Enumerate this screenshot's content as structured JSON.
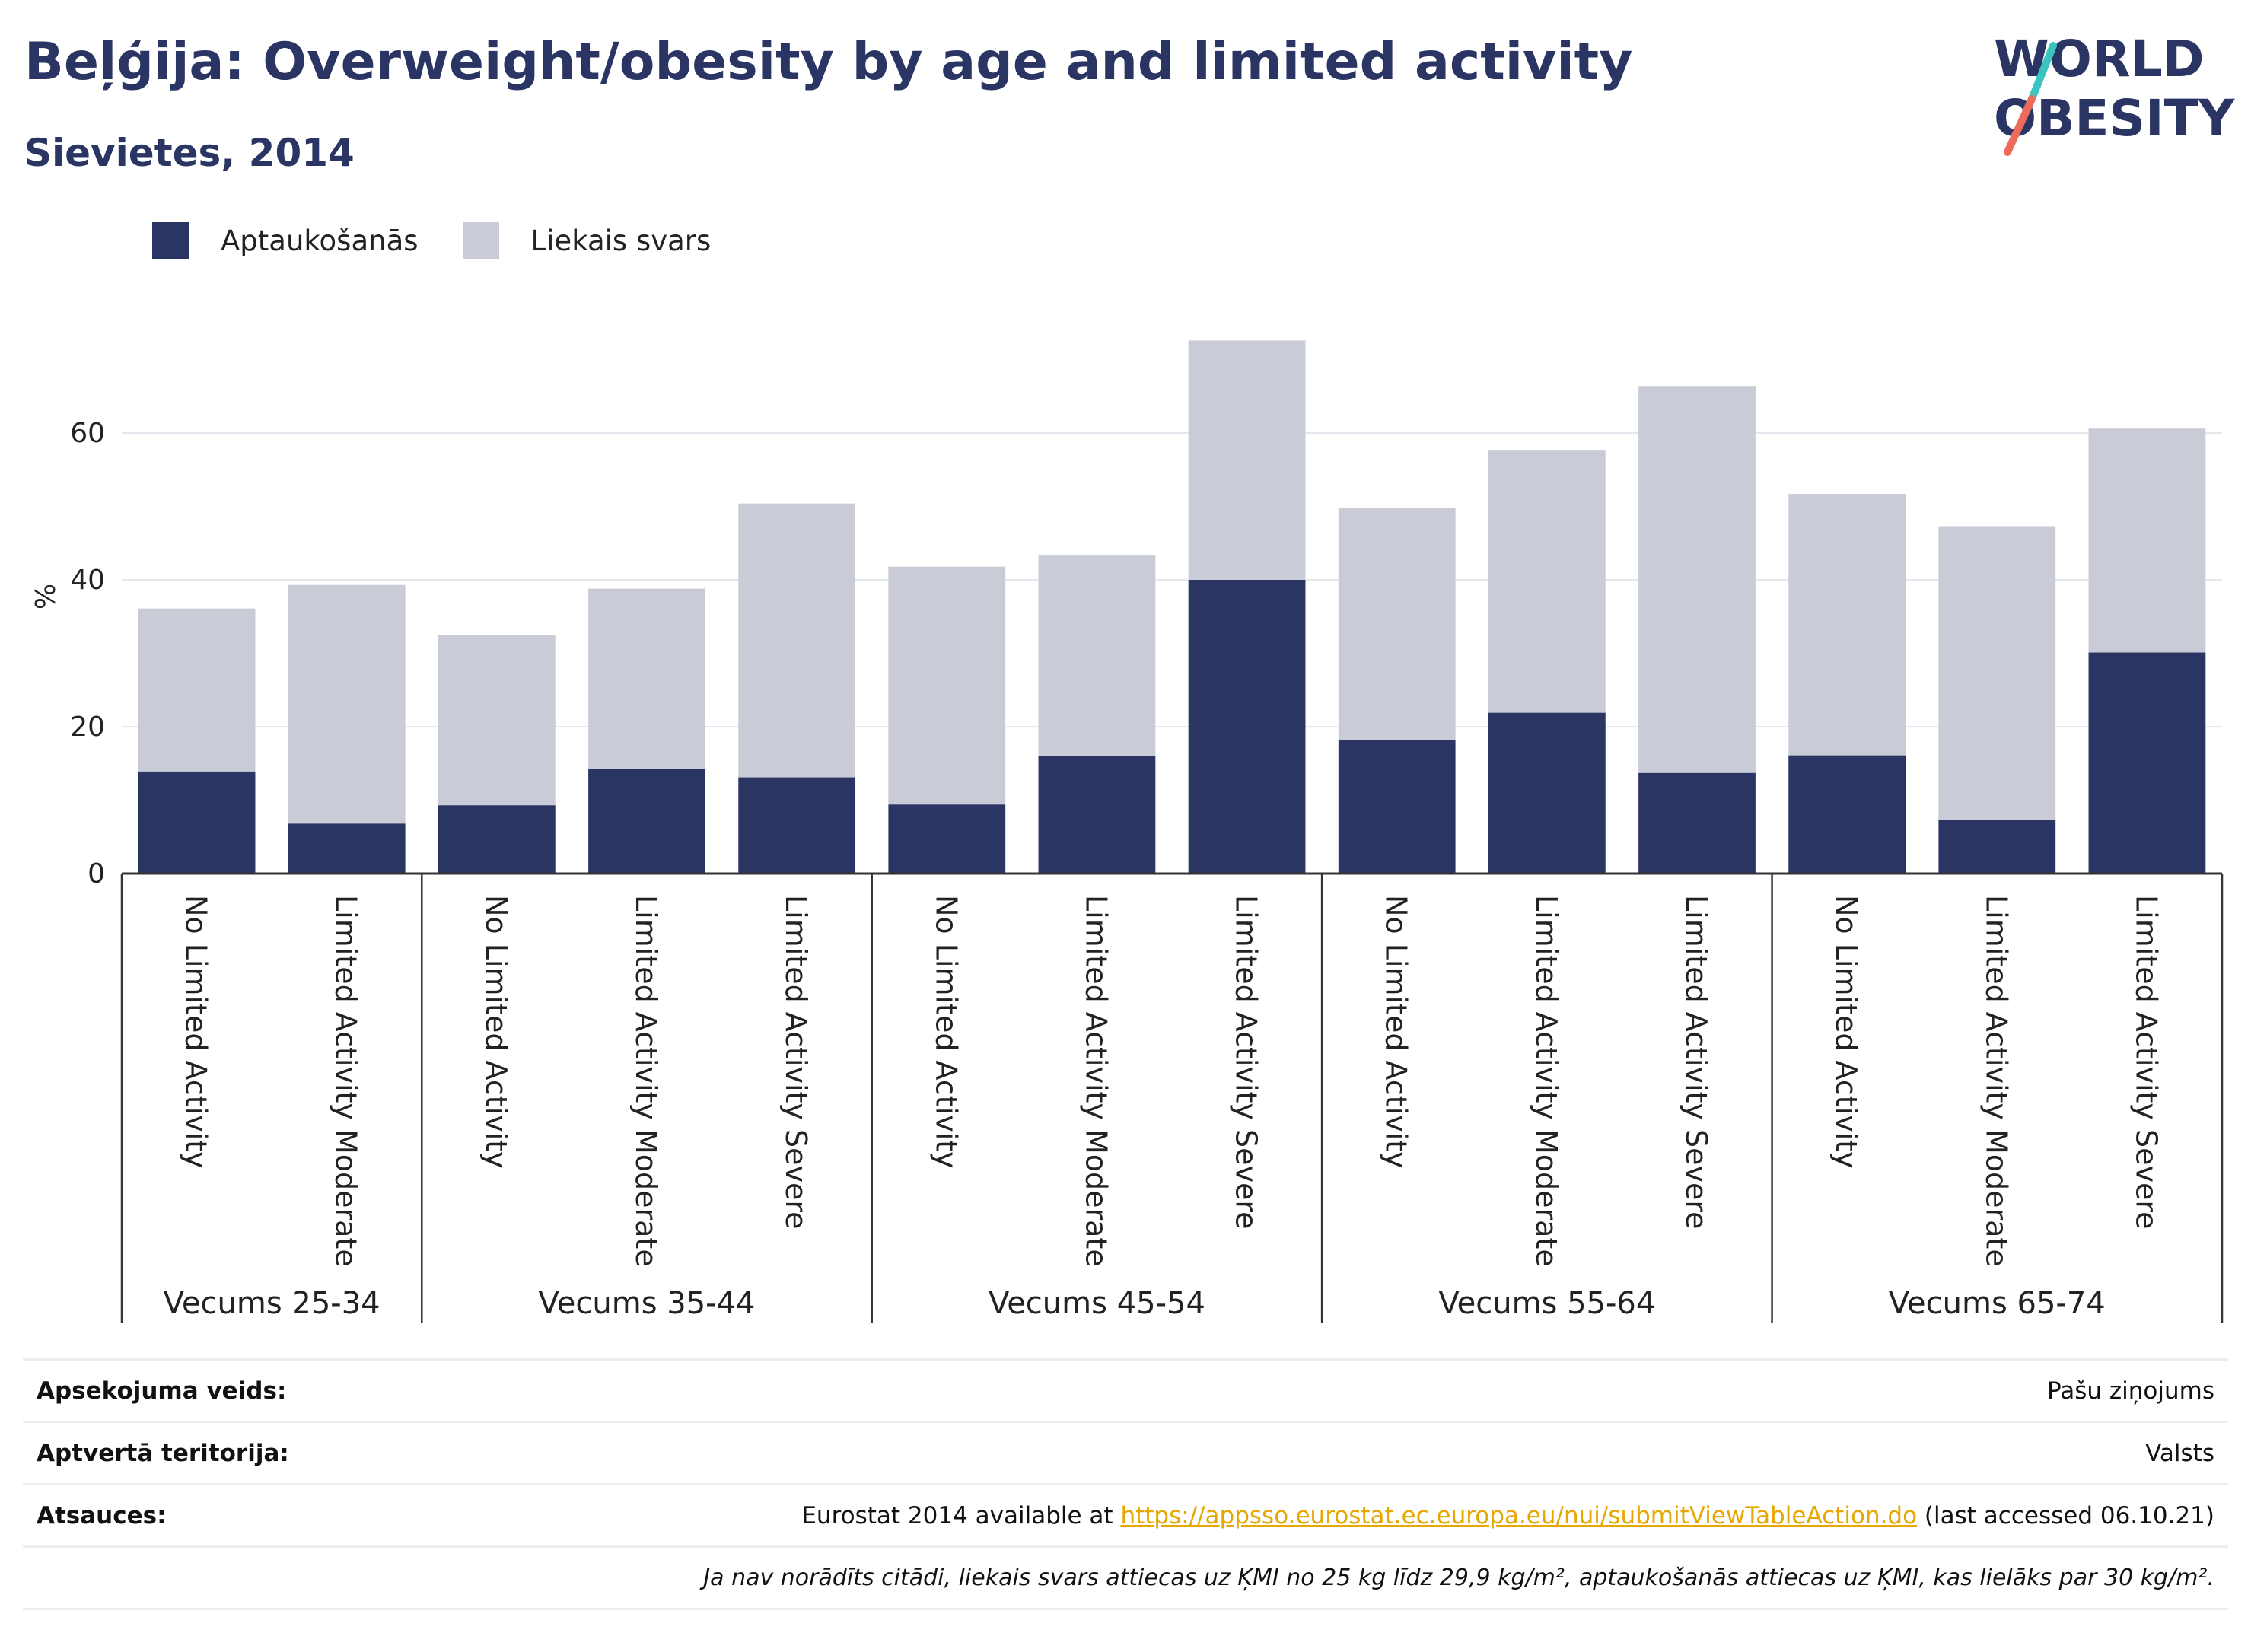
{
  "header": {
    "title": "Beļģija: Overweight/obesity by age and limited activity",
    "subtitle": "Sievietes, 2014"
  },
  "logo": {
    "line1": "WORLD",
    "line2": "OBESITY"
  },
  "colors": {
    "obesity": "#2a3563",
    "overweight": "#c9cbd7",
    "axis": "#333333",
    "grid": "#e6e7ee",
    "link": "#e6a800"
  },
  "chart_data": {
    "type": "bar",
    "stacked": true,
    "ylabel": "%",
    "ylim": [
      0,
      75
    ],
    "yticks": [
      0,
      20,
      40,
      60
    ],
    "grid": true,
    "legend_position": "top-left",
    "groups": [
      {
        "label": "Vecums 25-34",
        "categories": [
          "No Limited Activity",
          "Limited Activity Moderate"
        ]
      },
      {
        "label": "Vecums 35-44",
        "categories": [
          "No Limited Activity",
          "Limited Activity Moderate",
          "Limited Activity Severe"
        ]
      },
      {
        "label": "Vecums 45-54",
        "categories": [
          "No Limited Activity",
          "Limited Activity Moderate",
          "Limited Activity Severe"
        ]
      },
      {
        "label": "Vecums 55-64",
        "categories": [
          "No Limited Activity",
          "Limited Activity Moderate",
          "Limited Activity Severe"
        ]
      },
      {
        "label": "Vecums 65-74",
        "categories": [
          "No Limited Activity",
          "Limited Activity Moderate",
          "Limited Activity Severe"
        ]
      }
    ],
    "series": [
      {
        "name": "Aptaukošanās",
        "values": [
          13.9,
          6.8,
          9.3,
          14.2,
          13.1,
          9.4,
          16.0,
          40.0,
          18.2,
          21.9,
          13.7,
          16.1,
          7.3,
          30.1
        ]
      },
      {
        "name": "Liekais svars",
        "values": [
          22.2,
          32.5,
          23.2,
          24.6,
          37.3,
          32.4,
          27.3,
          32.6,
          31.6,
          35.7,
          52.7,
          35.6,
          40.0,
          30.5
        ]
      }
    ]
  },
  "info": {
    "rows": [
      {
        "label": "Apsekojuma veids:",
        "value": "Pašu ziņojums"
      },
      {
        "label": "Aptvertā teritorija:",
        "value": "Valsts"
      }
    ],
    "sources": {
      "label": "Atsauces:",
      "prefix": "Eurostat 2014 available at ",
      "link": "https://appsso.eurostat.ec.europa.eu/nui/submitViewTableAction.do",
      "suffix": " (last accessed 06.10.21)"
    },
    "note": "Ja nav norādīts citādi, liekais svars attiecas uz ĶMI no 25 kg līdz 29,9 kg/m², aptaukošanās attiecas uz ĶMI, kas lielāks par 30 kg/m²."
  }
}
